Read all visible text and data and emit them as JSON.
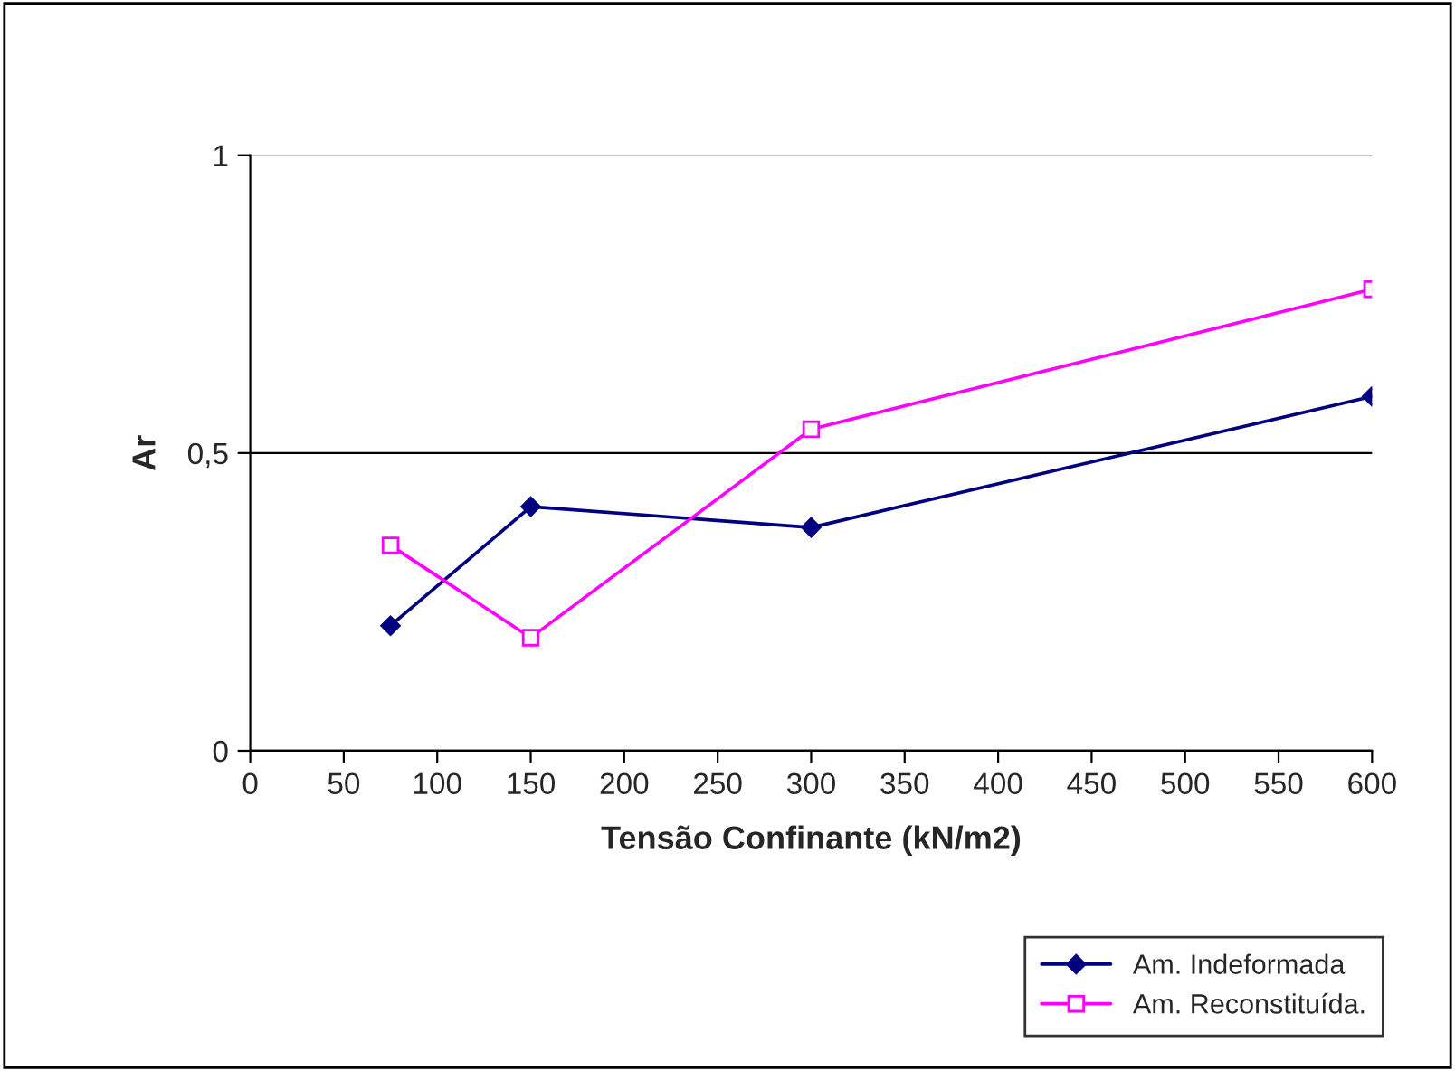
{
  "chart_data": {
    "type": "line",
    "xlabel": "Tensão Confinante (kN/m2)",
    "ylabel": "Ar",
    "x": [
      75,
      150,
      300,
      600
    ],
    "series": [
      {
        "name": "Am. Indeformada",
        "color": "#000080",
        "values": [
          0.21,
          0.41,
          0.375,
          0.595
        ],
        "marker": "diamond"
      },
      {
        "name": "Am. Reconstituída.",
        "color": "#ff00ff",
        "values": [
          0.345,
          0.19,
          0.54,
          0.775
        ],
        "marker": "square"
      }
    ],
    "xlim": [
      0,
      600
    ],
    "xticks": [
      0,
      50,
      100,
      150,
      200,
      250,
      300,
      350,
      400,
      450,
      500,
      550,
      600
    ],
    "ylim": [
      0,
      1
    ],
    "yticks": [
      0,
      {
        "value": 0.5,
        "label": "0,5"
      },
      1
    ],
    "grid": "y",
    "legend": "bottom right",
    "line_style": "solid"
  }
}
